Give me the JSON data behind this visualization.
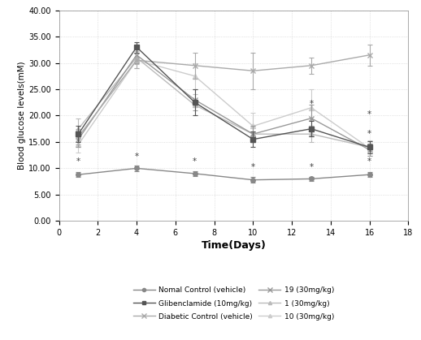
{
  "x": [
    1,
    4,
    7,
    10,
    13,
    16
  ],
  "series_order": [
    "Normal Control (vehicle)",
    "Glibenclamide (10mg/kg)",
    "Diabetic Control (vehicle)",
    "19 (30mg/kg)",
    "1 (30mg/kg)",
    "10 (30mg/kg)"
  ],
  "series": {
    "Normal Control (vehicle)": {
      "y": [
        8.8,
        10.0,
        9.0,
        7.8,
        8.0,
        8.8
      ],
      "yerr": [
        0.5,
        0.6,
        0.5,
        0.5,
        0.4,
        0.5
      ],
      "color": "#888888",
      "marker": "o",
      "markersize": 4,
      "linestyle": "-",
      "linewidth": 1.0,
      "zorder": 5
    },
    "Glibenclamide (10mg/kg)": {
      "y": [
        16.5,
        33.0,
        22.5,
        15.5,
        17.5,
        14.0
      ],
      "yerr": [
        1.5,
        1.0,
        2.5,
        1.5,
        1.5,
        1.2
      ],
      "color": "#555555",
      "marker": "s",
      "markersize": 4,
      "linestyle": "-",
      "linewidth": 1.0,
      "zorder": 6
    },
    "Diabetic Control (vehicle)": {
      "y": [
        16.0,
        30.5,
        29.5,
        28.5,
        29.5,
        31.5
      ],
      "yerr": [
        1.5,
        1.5,
        2.5,
        3.5,
        1.5,
        2.0
      ],
      "color": "#aaaaaa",
      "marker": "x",
      "markersize": 5,
      "linestyle": "-",
      "linewidth": 1.0,
      "zorder": 4
    },
    "19 (30mg/kg)": {
      "y": [
        15.5,
        31.5,
        23.0,
        16.5,
        19.5,
        13.5
      ],
      "yerr": [
        1.5,
        1.5,
        2.0,
        1.5,
        2.5,
        1.2
      ],
      "color": "#999999",
      "marker": "x",
      "markersize": 5,
      "linestyle": "-",
      "linewidth": 1.0,
      "zorder": 3
    },
    "1 (30mg/kg)": {
      "y": [
        17.5,
        31.0,
        22.0,
        16.5,
        16.5,
        14.0
      ],
      "yerr": [
        2.0,
        1.2,
        2.0,
        1.5,
        1.5,
        1.2
      ],
      "color": "#bbbbbb",
      "marker": "^",
      "markersize": 4,
      "linestyle": "-",
      "linewidth": 1.0,
      "zorder": 2
    },
    "10 (30mg/kg)": {
      "y": [
        14.5,
        30.5,
        27.5,
        18.0,
        21.5,
        13.8
      ],
      "yerr": [
        1.5,
        1.5,
        2.5,
        2.5,
        3.5,
        1.5
      ],
      "color": "#cccccc",
      "marker": "^",
      "markersize": 4,
      "linestyle": "-",
      "linewidth": 1.0,
      "zorder": 1
    }
  },
  "star_annotations": [
    [
      1,
      10.5
    ],
    [
      4,
      11.5
    ],
    [
      7,
      10.5
    ],
    [
      10,
      9.5
    ],
    [
      13,
      9.5
    ],
    [
      16,
      10.5
    ],
    [
      13,
      21.5
    ],
    [
      16,
      19.5
    ],
    [
      16,
      15.8
    ]
  ],
  "xlabel": "Time(Days)",
  "ylabel": "Blood glucose levels(mM)",
  "xlim": [
    0,
    18
  ],
  "ylim": [
    0,
    40
  ],
  "xticks": [
    0,
    2,
    4,
    6,
    8,
    10,
    12,
    14,
    16,
    18
  ],
  "yticks": [
    0.0,
    5.0,
    10.0,
    15.0,
    20.0,
    25.0,
    30.0,
    35.0,
    40.0
  ],
  "ytick_labels": [
    "0.00",
    "5.00",
    "10.00",
    "15.00",
    "20.00",
    "25.00",
    "30.00",
    "35.00",
    "40.00"
  ],
  "grid_color": "#cccccc",
  "legend_order": [
    "Normal Control (vehicle)",
    "Glibenclamide (10mg/kg)",
    "Diabetic Control (vehicle)",
    "19 (30mg/kg)",
    "1 (30mg/kg)",
    "10 (30mg/kg)"
  ],
  "legend_labels_display": [
    "Nomal Control (vehicle)",
    "Glibenclamide (10mg/kg)",
    "Diabetic Control (vehicle)",
    "19 (30mg/kg)",
    "1 (30mg/kg)",
    "10 (30mg/kg)"
  ]
}
